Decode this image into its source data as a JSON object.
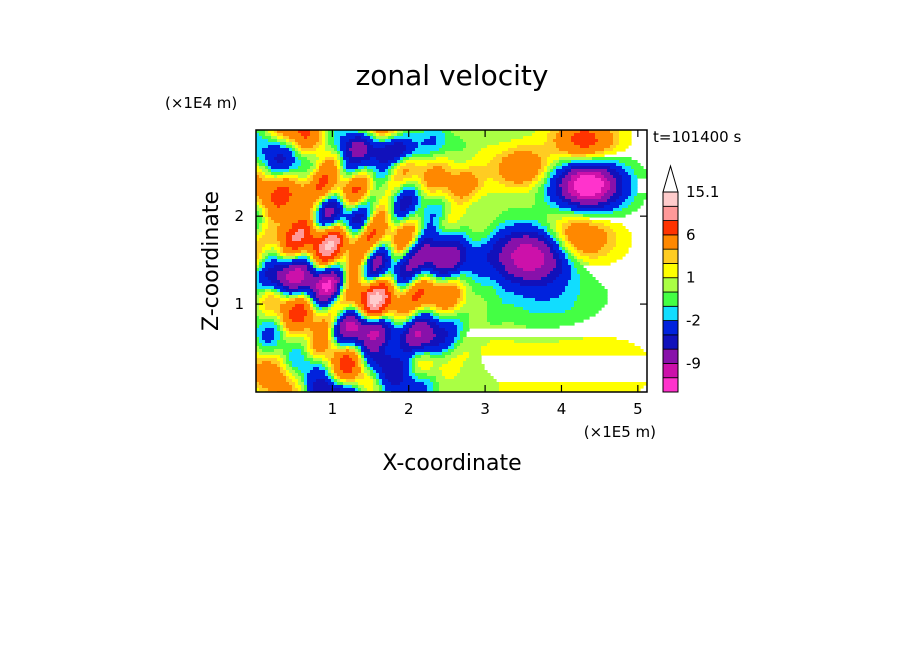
{
  "chart_data": {
    "type": "heatmap",
    "title": "zonal velocity",
    "xlabel": "X-coordinate",
    "ylabel": "Z-coordinate",
    "x_unit": "(×1E5 m)",
    "y_unit": "(×1E4 m)",
    "time_label": "t=101400 s",
    "xlim": [
      0,
      5.12
    ],
    "ylim": [
      0,
      2.98
    ],
    "x_ticks": [
      1,
      2,
      3,
      4,
      5
    ],
    "y_ticks": [
      1,
      2
    ],
    "colorbar": {
      "labels": [
        "15.1",
        "6",
        "1",
        "-2",
        "-9"
      ],
      "label_values": [
        15.1,
        6,
        1,
        -2,
        -9
      ],
      "levels": [
        -15,
        -12,
        -9,
        -6,
        -4,
        -2,
        -1,
        0,
        1,
        2,
        3,
        6,
        9,
        12,
        15.1
      ],
      "colors": [
        "#ff33cc",
        "#cc11aa",
        "#8811aa",
        "#1111bb",
        "#0022dd",
        "#11ddff",
        "#44ff44",
        "#aaff44",
        "#ffff00",
        "#ffcc22",
        "#ff8800",
        "#ff3300",
        "#ff9999",
        "#ffcccc"
      ]
    },
    "blobs": [
      {
        "x": 4.35,
        "y": 2.35,
        "r": 0.45,
        "v": -13
      },
      {
        "x": 4.35,
        "y": 2.35,
        "r": 0.2,
        "v": -5
      },
      {
        "x": 3.6,
        "y": 1.55,
        "r": 0.5,
        "v": -12
      },
      {
        "x": 4.3,
        "y": 2.85,
        "r": 0.38,
        "v": 7
      },
      {
        "x": 3.5,
        "y": 2.55,
        "r": 0.35,
        "v": 5
      },
      {
        "x": 4.2,
        "y": 1.75,
        "r": 0.45,
        "v": 6
      },
      {
        "x": 2.35,
        "y": 1.55,
        "r": 0.4,
        "v": -9
      },
      {
        "x": 2.3,
        "y": 1.1,
        "r": 0.35,
        "v": 5
      },
      {
        "x": 2.15,
        "y": 0.6,
        "r": 0.35,
        "v": -9
      },
      {
        "x": 1.5,
        "y": 1.1,
        "r": 0.4,
        "v": 5
      },
      {
        "x": 1.0,
        "y": 1.2,
        "r": 0.3,
        "v": -7
      },
      {
        "x": 0.3,
        "y": 1.3,
        "r": 0.3,
        "v": -8
      },
      {
        "x": 0.7,
        "y": 2.3,
        "r": 0.4,
        "v": 6
      },
      {
        "x": 1.2,
        "y": 2.45,
        "r": 0.3,
        "v": -6
      },
      {
        "x": 0.35,
        "y": 1.75,
        "r": 0.35,
        "v": 6
      },
      {
        "x": 1.2,
        "y": 1.75,
        "r": 0.3,
        "v": 5
      },
      {
        "x": 1.65,
        "y": 0.3,
        "r": 0.3,
        "v": -7
      },
      {
        "x": 0.5,
        "y": 0.5,
        "r": 0.35,
        "v": 4
      },
      {
        "x": 3.5,
        "y": 0.35,
        "r": 0.9,
        "v": 1
      },
      {
        "x": 4.5,
        "y": 0.3,
        "r": 0.7,
        "v": 1
      },
      {
        "x": 3.9,
        "y": 1.0,
        "r": 0.45,
        "v": -1
      },
      {
        "x": 2.7,
        "y": 2.35,
        "r": 0.3,
        "v": 4
      },
      {
        "x": 1.9,
        "y": 2.75,
        "r": 0.25,
        "v": -5
      },
      {
        "x": 1.4,
        "y": 0.75,
        "r": 0.3,
        "v": -5
      },
      {
        "x": 0.8,
        "y": 0.3,
        "r": 0.3,
        "v": -3
      }
    ]
  }
}
